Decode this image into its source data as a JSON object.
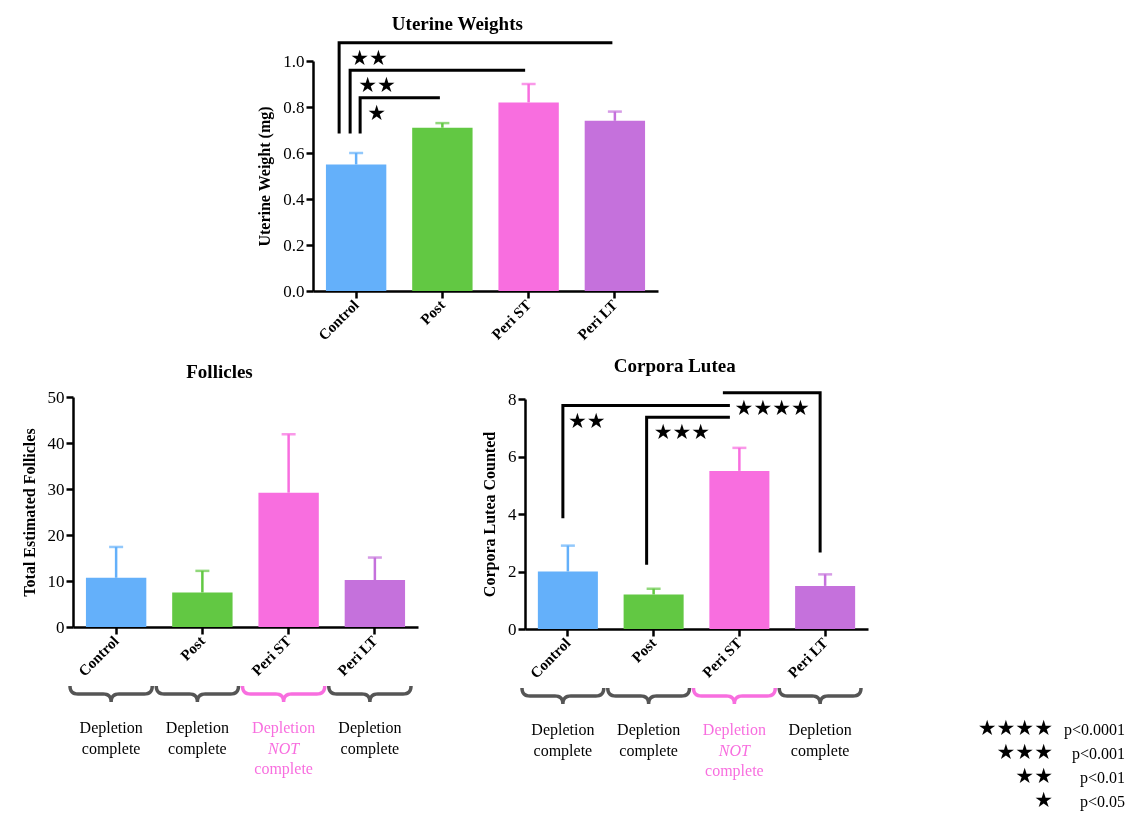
{
  "chart_data": [
    {
      "type": "bar",
      "title": "Uterine Weights",
      "ylabel": "Uterine Weight (mg)",
      "categories": [
        "Control",
        "Post",
        "Peri ST",
        "Peri LT"
      ],
      "values": [
        0.55,
        0.71,
        0.82,
        0.74
      ],
      "colors": [
        "#64b0fa",
        "#62c843",
        "#f86edf",
        "#c571dc"
      ],
      "errors": [
        [
          0.55,
          0.6
        ],
        [
          0.71,
          0.73
        ],
        [
          0.82,
          0.9
        ],
        [
          0.74,
          0.78
        ]
      ],
      "ylim": [
        0,
        1
      ],
      "yticks": [
        {
          "value": 0,
          "label": "0.0"
        },
        0.2,
        0.4,
        0.6,
        0.8,
        {
          "value": 1,
          "label": "1.0"
        }
      ],
      "annotations": [
        "★★",
        "★★",
        "★"
      ]
    },
    {
      "type": "bar",
      "title": "Follicles",
      "ylabel": "Total Estimated Follicles",
      "categories": [
        "Control",
        "Post",
        "Peri ST",
        "Peri LT"
      ],
      "values": [
        10.7,
        7.5,
        29.2,
        10.2
      ],
      "colors": [
        "#64b0fa",
        "#62c843",
        "#f86edf",
        "#c571dc"
      ],
      "errors": [
        [
          10.7,
          17.4
        ],
        [
          7.5,
          12.2
        ],
        [
          29.2,
          41.9
        ],
        [
          10.2,
          15.1
        ]
      ],
      "ylim": [
        0,
        50
      ],
      "yticks": [
        0,
        10,
        20,
        30,
        40,
        50
      ],
      "annotations": [
        "Depletion complete",
        "Depletion complete",
        "Depletion NOT complete",
        "Depletion complete"
      ]
    },
    {
      "type": "bar",
      "title": "Corpora Lutea",
      "ylabel": "Corpora Lutea Counted",
      "categories": [
        "Control",
        "Post",
        "Peri ST",
        "Peri LT"
      ],
      "values": [
        2.0,
        1.2,
        5.5,
        1.5
      ],
      "colors": [
        "#64b0fa",
        "#62c843",
        "#f86edf",
        "#c571dc"
      ],
      "errors": [
        [
          2.0,
          2.9
        ],
        [
          1.2,
          1.4
        ],
        [
          5.5,
          6.3
        ],
        [
          1.5,
          1.9
        ]
      ],
      "ylim": [
        0,
        8
      ],
      "yticks": [
        0,
        2,
        4,
        6,
        8
      ],
      "annotations": [
        "★★",
        "★★★",
        "★★★★",
        "Depletion complete",
        "Depletion complete",
        "Depletion NOT complete",
        "Depletion complete"
      ]
    },
    {
      "type": "other",
      "annotations": [
        "★★★★ p<0.0001",
        "★★★ p<0.001",
        "★★ p<0.01",
        "★ p<0.05"
      ]
    }
  ]
}
